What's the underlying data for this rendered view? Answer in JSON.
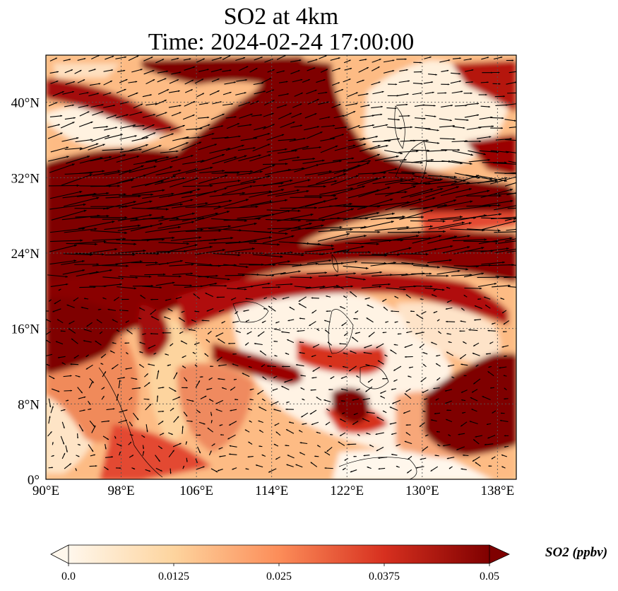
{
  "title": {
    "line1": "SO2 at 4km",
    "line2": "Time: 2024-02-24 17:00:00"
  },
  "map": {
    "extent": {
      "lon": [
        90,
        140
      ],
      "lat": [
        0,
        45
      ]
    },
    "lon_ticks": [
      90,
      98,
      106,
      114,
      122,
      130,
      138
    ],
    "lon_labels": [
      "90°E",
      "98°E",
      "106°E",
      "114°E",
      "122°E",
      "130°E",
      "138°E"
    ],
    "lat_ticks": [
      0,
      8,
      16,
      24,
      32,
      40
    ],
    "lat_labels": [
      "0°",
      "8°N",
      "16°N",
      "24°N",
      "32°N",
      "40°N"
    ],
    "gridlines": "dotted",
    "field_colormap": "OrRd",
    "vector_color": "#000000"
  },
  "colorbar": {
    "label": "SO2 (ppbv)",
    "min": 0.0,
    "max": 0.05,
    "ticks": [
      0.0,
      0.0125,
      0.025,
      0.0375,
      0.05
    ],
    "tick_labels": [
      "0.0",
      "0.0125",
      "0.025",
      "0.0375",
      "0.05"
    ],
    "extend": "both",
    "colors": [
      "#fff7ec",
      "#fdd49e",
      "#fc8d59",
      "#d7301f",
      "#7f0000"
    ]
  }
}
